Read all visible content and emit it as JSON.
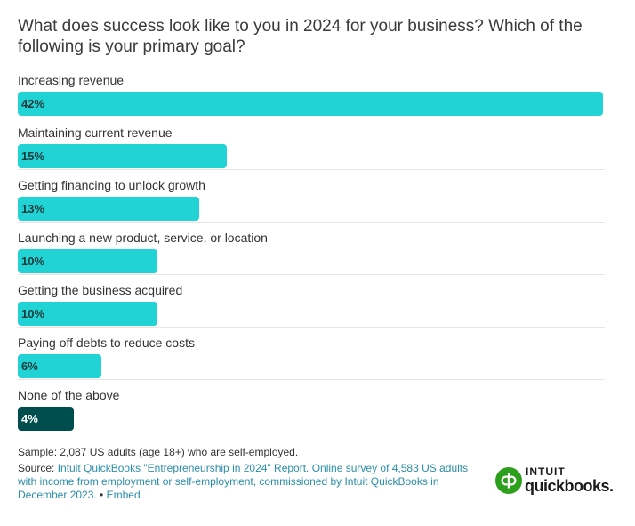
{
  "chart_data": {
    "type": "bar",
    "orientation": "horizontal",
    "title": "What does success look like to you in 2024 for your business? Which of the following is your primary goal?",
    "categories": [
      "Increasing revenue",
      "Maintaining current revenue",
      "Getting financing to unlock growth",
      "Launching a new product, service, or location",
      "Getting the business acquired",
      "Paying off debts to reduce costs",
      "None of the above"
    ],
    "values": [
      42,
      15,
      13,
      10,
      10,
      6,
      4
    ],
    "value_labels": [
      "42%",
      "15%",
      "13%",
      "10%",
      "10%",
      "6%",
      "4%"
    ],
    "xlim": [
      0,
      42
    ],
    "colors": {
      "bar": "#22d3d6",
      "bar_highlight": "#004d4d",
      "label_dark": "#1b3b3b",
      "label_light": "#ffffff"
    },
    "highlight_index": 6,
    "grid": false,
    "legend": "none"
  },
  "footer": {
    "sample": "Sample: 2,087 US adults (age 18+) who are self-employed.",
    "source_prefix": "Source: ",
    "source_text": "Intuit QuickBooks \"Entrepreneurship in 2024\" Report. Online survey of 4,583 US adults with income from employment or self-employment, commissioned by Intuit QuickBooks in December 2023.",
    "separator": " • ",
    "embed_label": "Embed"
  },
  "logo": {
    "brand_top": "INTUIT",
    "brand_main": "quickbooks.",
    "icon": "quickbooks-qb-icon"
  }
}
